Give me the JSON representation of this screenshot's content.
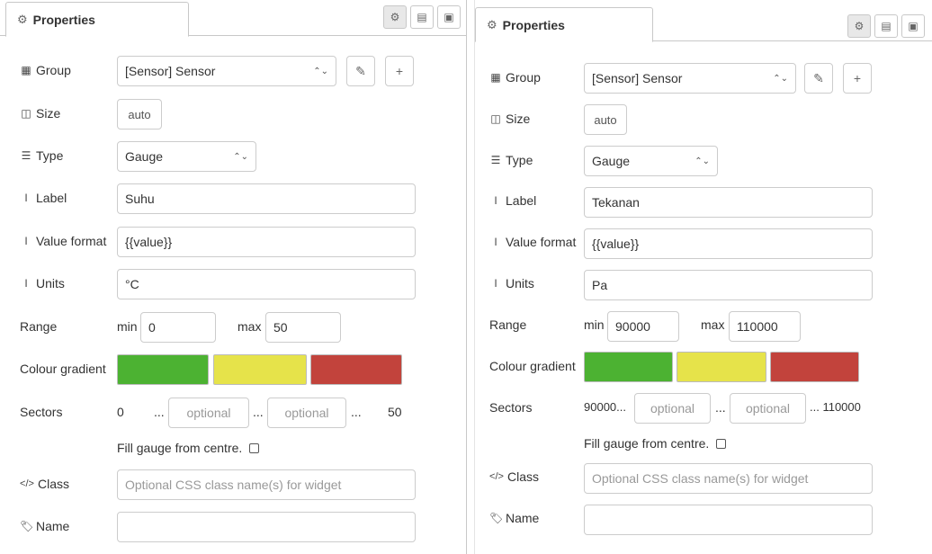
{
  "left": {
    "tab_title": "Properties",
    "group": {
      "label": "Group",
      "value": "[Sensor] Sensor"
    },
    "size": {
      "label": "Size",
      "value": "auto"
    },
    "type": {
      "label": "Type",
      "value": "Gauge"
    },
    "label_field": {
      "label": "Label",
      "value": "Suhu"
    },
    "value_format": {
      "label": "Value format",
      "value": "{{value}}"
    },
    "units": {
      "label": "Units",
      "value": "°C"
    },
    "range": {
      "label": "Range",
      "min_label": "min",
      "min": "0",
      "max_label": "max",
      "max": "50"
    },
    "colour_gradient": {
      "label": "Colour gradient",
      "colors": [
        "#4cb232",
        "#e6e34a",
        "#c2433c"
      ]
    },
    "sectors": {
      "label": "Sectors",
      "start": "0",
      "sep1": "...",
      "placeholder1": "optional",
      "sep2": "...",
      "placeholder2": "optional",
      "sep3": "...",
      "end": "50"
    },
    "fill_gauge": {
      "label": "Fill gauge from centre."
    },
    "class": {
      "label": "Class",
      "placeholder": "Optional CSS class name(s) for widget"
    },
    "name": {
      "label": "Name",
      "value": ""
    }
  },
  "right": {
    "tab_title": "Properties",
    "group": {
      "label": "Group",
      "value": "[Sensor] Sensor"
    },
    "size": {
      "label": "Size",
      "value": "auto"
    },
    "type": {
      "label": "Type",
      "value": "Gauge"
    },
    "label_field": {
      "label": "Label",
      "value": "Tekanan"
    },
    "value_format": {
      "label": "Value format",
      "value": "{{value}}"
    },
    "units": {
      "label": "Units",
      "value": "Pa"
    },
    "range": {
      "label": "Range",
      "min_label": "min",
      "min": "90000",
      "max_label": "max",
      "max": "110000"
    },
    "colour_gradient": {
      "label": "Colour gradient",
      "colors": [
        "#4cb232",
        "#e6e34a",
        "#c2433c"
      ]
    },
    "sectors": {
      "label": "Sectors",
      "start": "90000...",
      "placeholder1": "optional",
      "sep2": "...",
      "placeholder2": "optional",
      "end": "... 110000"
    },
    "fill_gauge": {
      "label": "Fill gauge from centre."
    },
    "class": {
      "label": "Class",
      "placeholder": "Optional CSS class name(s) for widget"
    },
    "name": {
      "label": "Name",
      "value": ""
    }
  },
  "icons": {
    "gear": "gear-icon",
    "doc": "document-icon",
    "layout": "layout-icon",
    "table": "table-icon",
    "size": "size-icon",
    "list": "list-icon",
    "text_cursor": "text-cursor-icon",
    "code": "code-icon",
    "tag": "tag-icon",
    "pencil": "pencil-icon",
    "plus": "plus-icon"
  }
}
